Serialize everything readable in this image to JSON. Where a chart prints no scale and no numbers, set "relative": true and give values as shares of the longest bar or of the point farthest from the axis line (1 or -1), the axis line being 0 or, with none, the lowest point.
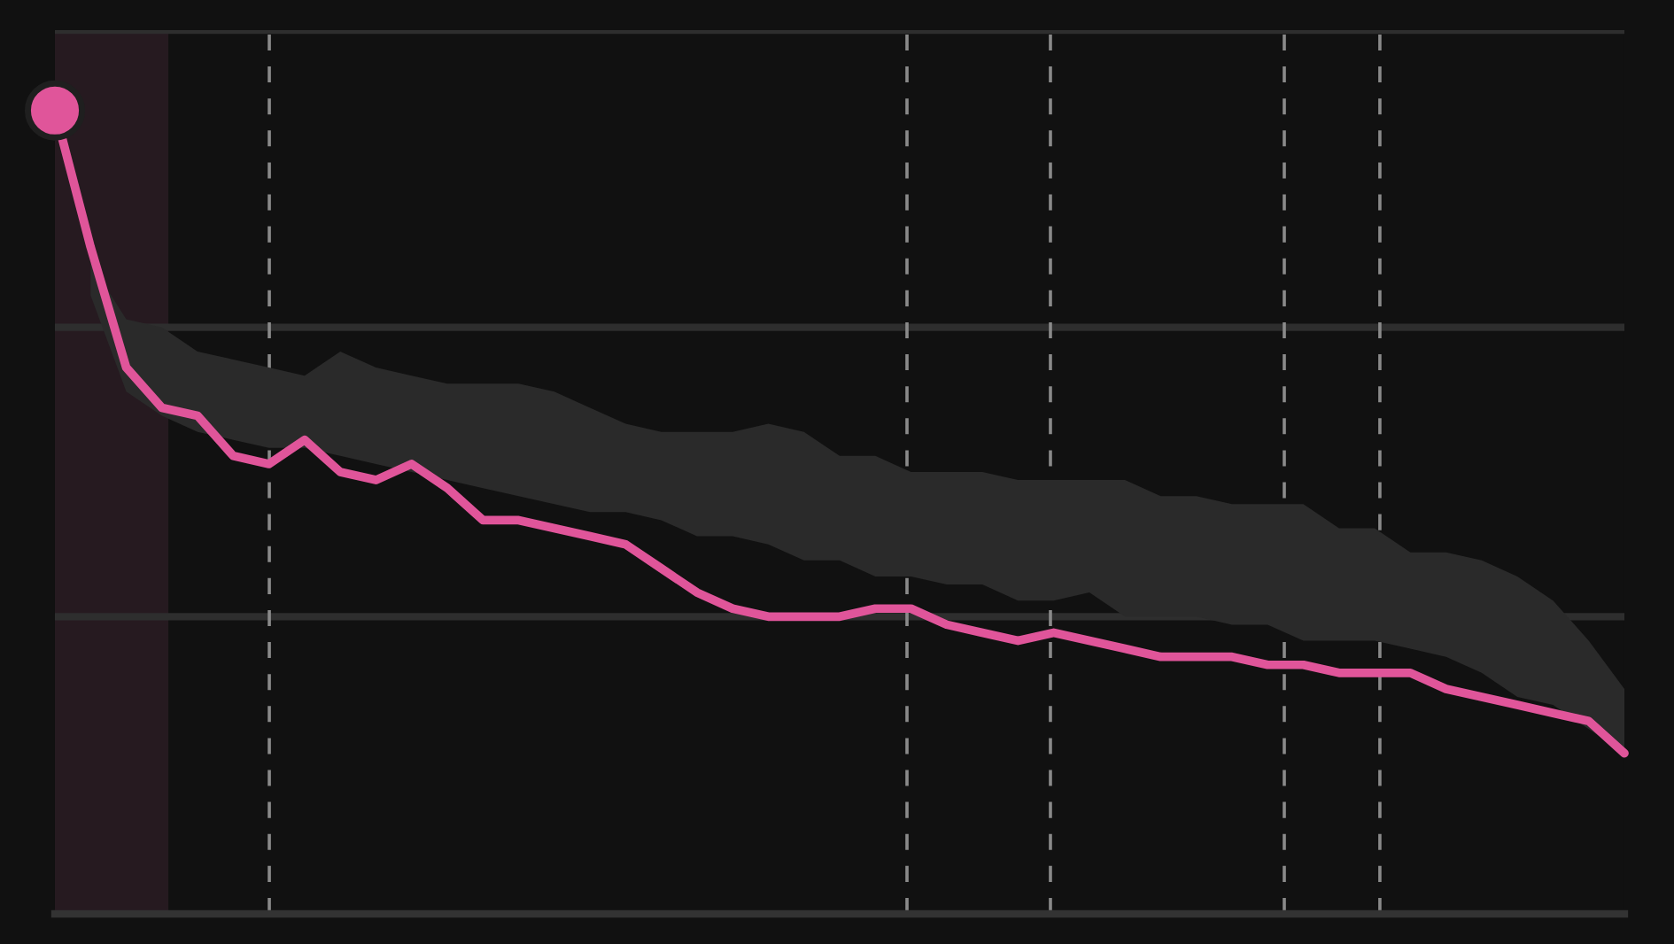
{
  "chart_data": {
    "type": "line",
    "relative": true,
    "categories": [
      null,
      null,
      null,
      null,
      null,
      null,
      null,
      null,
      null,
      null,
      null,
      null,
      null,
      null,
      null,
      null,
      null,
      null,
      null,
      null,
      null,
      null,
      null,
      null,
      null,
      null,
      null,
      null,
      null,
      null,
      null,
      null,
      null,
      null,
      null,
      null,
      null,
      null,
      null,
      null,
      null,
      null,
      null,
      null,
      null
    ],
    "series": [
      {
        "color": "#e0559a",
        "line_style": "solid",
        "values": [
          1.0,
          0.83,
          0.68,
          0.63,
          0.62,
          0.57,
          0.56,
          0.59,
          0.55,
          0.54,
          0.56,
          0.53,
          0.49,
          0.49,
          0.48,
          0.47,
          0.46,
          0.43,
          0.4,
          0.38,
          0.37,
          0.37,
          0.37,
          0.38,
          0.38,
          0.36,
          0.35,
          0.34,
          0.35,
          0.34,
          0.33,
          0.32,
          0.32,
          0.32,
          0.31,
          0.31,
          0.3,
          0.3,
          0.3,
          0.28,
          0.27,
          0.26,
          0.25,
          0.24,
          0.2
        ],
        "upper": [
          null,
          0.81,
          0.74,
          0.73,
          0.7,
          0.69,
          0.68,
          0.67,
          0.7,
          0.68,
          0.67,
          0.66,
          0.66,
          0.66,
          0.65,
          0.63,
          0.61,
          0.6,
          0.6,
          0.6,
          0.61,
          0.6,
          0.57,
          0.57,
          0.55,
          0.55,
          0.55,
          0.54,
          0.54,
          0.54,
          0.54,
          0.52,
          0.52,
          0.51,
          0.51,
          0.51,
          0.48,
          0.48,
          0.45,
          0.45,
          0.44,
          0.42,
          0.39,
          0.34,
          0.28
        ],
        "lower": [
          null,
          0.77,
          0.65,
          0.62,
          0.6,
          0.59,
          0.58,
          0.58,
          0.57,
          0.56,
          0.55,
          0.54,
          0.53,
          0.52,
          0.51,
          0.5,
          0.5,
          0.49,
          0.47,
          0.47,
          0.46,
          0.44,
          0.44,
          0.42,
          0.42,
          0.41,
          0.41,
          0.39,
          0.39,
          0.4,
          0.37,
          0.37,
          0.37,
          0.36,
          0.36,
          0.34,
          0.34,
          0.34,
          0.33,
          0.32,
          0.3,
          0.27,
          0.26,
          0.23,
          0.2
        ]
      }
    ],
    "ref_lines": [
      {
        "axis": "y",
        "value": 0.37,
        "color": "#2e2e2e"
      },
      {
        "axis": "y",
        "value": 0.73,
        "color": "#2e2e2e"
      },
      {
        "axis": "y",
        "value": 1.1,
        "color": "#2e2e2e"
      }
    ],
    "grid": "x",
    "legend": false
  }
}
